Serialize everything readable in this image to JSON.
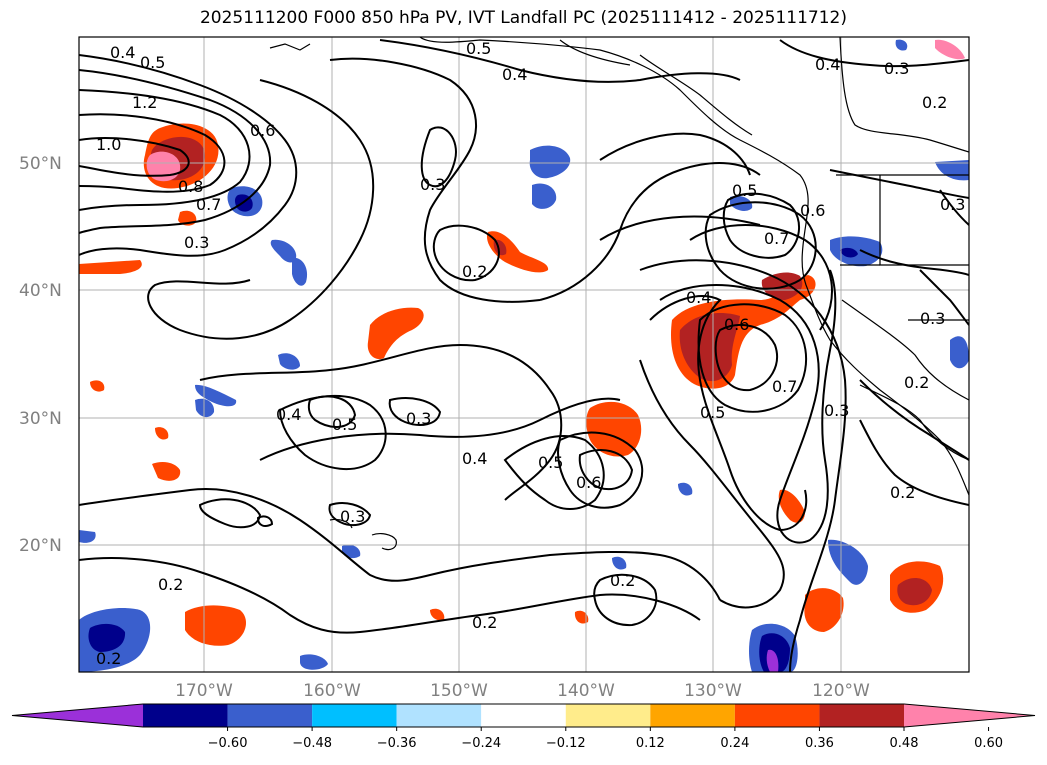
{
  "title": "2025111200 F000 850 hPa PV, IVT Landfall PC (2025111412 - 2025111712)",
  "lat_labels": [
    "20°N",
    "30°N",
    "40°N",
    "50°N"
  ],
  "lon_labels": [
    "170°W",
    "160°W",
    "150°W",
    "140°W",
    "130°W",
    "120°W"
  ],
  "colorbar": {
    "ticks": [
      "−0.60",
      "−0.48",
      "−0.36",
      "−0.24",
      "−0.12",
      "0.12",
      "0.24",
      "0.36",
      "0.48",
      "0.60"
    ],
    "colors": [
      "#9b30d9",
      "#00008b",
      "#3a5fcd",
      "#00bfff",
      "#b0e2ff",
      "#ffffff",
      "#ffec8b",
      "#ffa500",
      "#ff4500",
      "#b22222",
      "#ff82ab"
    ]
  },
  "contour_labels": [
    "0.4",
    "0.5",
    "1.2",
    "1.0",
    "0.6",
    "0.8",
    "0.7",
    "0.3",
    "0.5",
    "0.4",
    "0.3",
    "0.2",
    "0.4",
    "0.3",
    "0.2",
    "0.5",
    "0.7",
    "0.6",
    "0.3",
    "0.4",
    "0.6",
    "0.7",
    "0.5",
    "0.3",
    "0.3",
    "0.2",
    "0.4",
    "0.5",
    "0.3",
    "0.4",
    "0.5",
    "0.6",
    "0.3",
    "0.2",
    "0.2",
    "0.2",
    "0.2",
    "0.2"
  ]
}
